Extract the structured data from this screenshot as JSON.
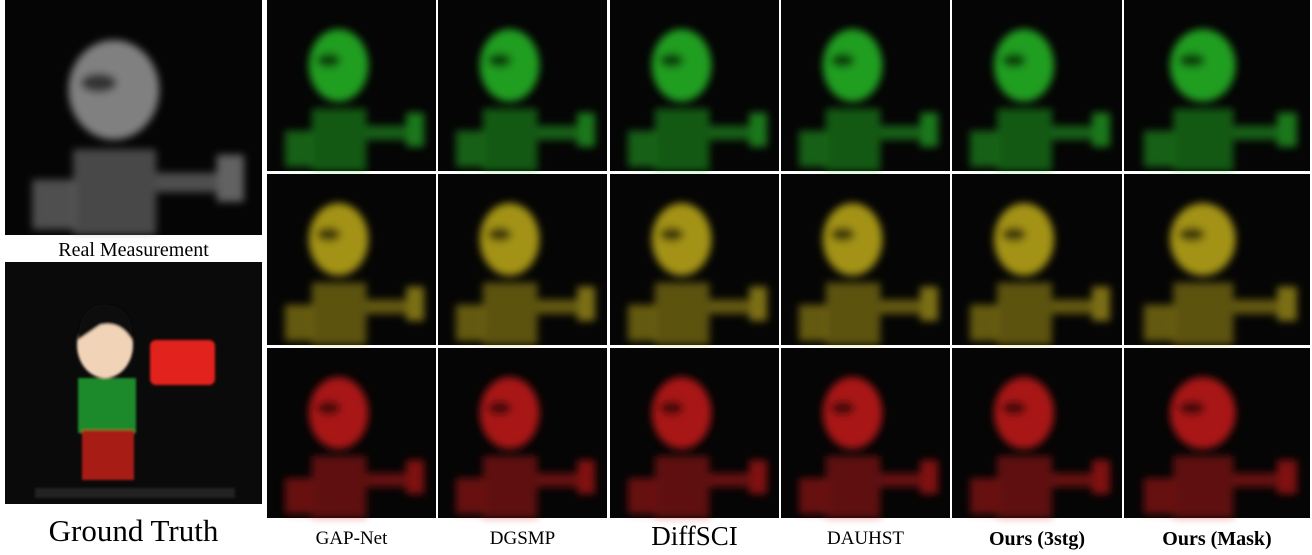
{
  "left_panels": [
    {
      "label": "Real Measurement"
    },
    {
      "label": "Ground Truth"
    }
  ],
  "methods": [
    {
      "label": "GAP-Net"
    },
    {
      "label": "DGSMP"
    },
    {
      "label": "DiffSCI"
    },
    {
      "label": "DAUHST"
    },
    {
      "label": "Ours (3stg)"
    },
    {
      "label": "Ours (Mask)"
    }
  ]
}
